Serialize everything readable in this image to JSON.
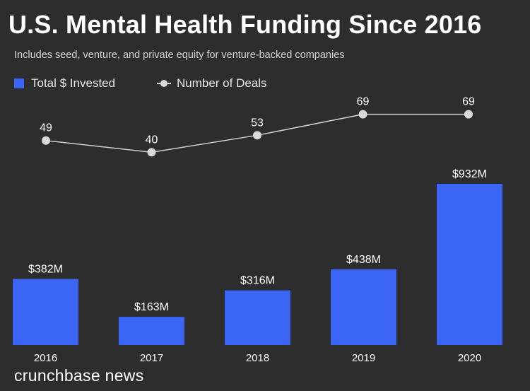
{
  "title": "U.S. Mental Health Funding Since 2016",
  "subtitle": "Includes seed, venture, and private equity for venture-backed companies",
  "legend": {
    "bars": "Total $ Invested",
    "line": "Number of Deals"
  },
  "brand": "crunchbase news",
  "colors": {
    "background": "#2d2d2d",
    "bar": "#3b66f5",
    "line": "#d0d0d0",
    "text": "#ffffff"
  },
  "chart_data": {
    "type": "bar",
    "categories": [
      "2016",
      "2017",
      "2018",
      "2019",
      "2020"
    ],
    "series": [
      {
        "name": "Total $ Invested",
        "type": "bar",
        "values": [
          382,
          163,
          316,
          438,
          932
        ],
        "labels": [
          "$382M",
          "$163M",
          "$316M",
          "$438M",
          "$932M"
        ]
      },
      {
        "name": "Number of Deals",
        "type": "line",
        "values": [
          49,
          40,
          53,
          69,
          69
        ],
        "labels": [
          "49",
          "40",
          "53",
          "69",
          "69"
        ]
      }
    ],
    "legend_position": "top-left",
    "grid": false
  }
}
